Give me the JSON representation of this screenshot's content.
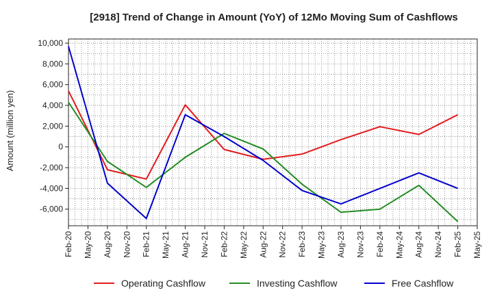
{
  "chart_data": {
    "type": "line",
    "title": "[2918]  Trend of Change in Amount (YoY) of 12Mo Moving Sum of Cashflows",
    "xlabel": "",
    "ylabel": "Amount (million yen)",
    "categories": [
      "Feb-20",
      "May-20",
      "Aug-20",
      "Nov-20",
      "Feb-21",
      "May-21",
      "Aug-21",
      "Nov-21",
      "Feb-22",
      "May-22",
      "Aug-22",
      "Nov-22",
      "Feb-23",
      "May-23",
      "Aug-23",
      "Nov-23",
      "Feb-24",
      "May-24",
      "Aug-24",
      "Nov-24",
      "Feb-25",
      "May-25"
    ],
    "ylim": [
      -7600,
      10400
    ],
    "yticks": [
      10000,
      8000,
      6000,
      4000,
      2000,
      0,
      -2000,
      -4000,
      -6000
    ],
    "ytick_labels": [
      "10,000",
      "8,000",
      "6,000",
      "4,000",
      "2,000",
      "0",
      "-2,000",
      "-4,000",
      "-6,000"
    ],
    "grid": true,
    "legend_position": "bottom",
    "series": [
      {
        "name": "Operating Cashflow",
        "color": "#e31a1c",
        "values": [
          5400,
          null,
          -2200,
          null,
          -3100,
          null,
          4050,
          null,
          -250,
          null,
          -1200,
          null,
          -700,
          null,
          700,
          null,
          1950,
          null,
          1200,
          null,
          3100,
          null
        ]
      },
      {
        "name": "Investing Cashflow",
        "color": "#228b22",
        "values": [
          4300,
          null,
          -1400,
          null,
          -3900,
          null,
          -1000,
          null,
          1300,
          null,
          -200,
          null,
          -3600,
          null,
          -6300,
          null,
          -6000,
          null,
          -3700,
          null,
          -7200,
          null
        ]
      },
      {
        "name": "Free Cashflow",
        "color": "#0000cc",
        "values": [
          9700,
          null,
          -3500,
          null,
          -6900,
          null,
          3100,
          null,
          1000,
          null,
          -1300,
          null,
          -4200,
          null,
          -5500,
          null,
          -4000,
          null,
          -2500,
          null,
          -4000,
          null
        ]
      }
    ]
  }
}
